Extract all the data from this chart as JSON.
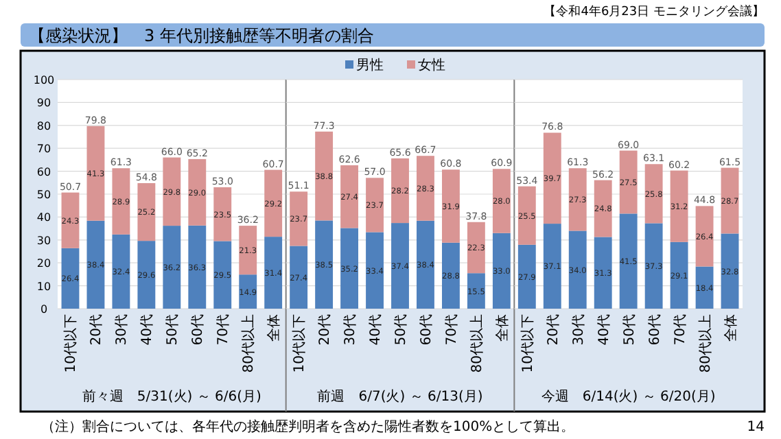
{
  "chart_data": [
    {
      "type": "bar",
      "title": "【感染状況】　3 年代別接触歴等不明者の割合",
      "annotations": [
        "【令和4年6月23日 モニタリング会議】",
        "（注）割合については、各年代の接触歴判明者を含めた陽性者数を100%として算出。",
        "14"
      ],
      "xlabel": "前々週　5/31(火) ～ 6/6(月)",
      "categories": [
        "10代以下",
        "20代",
        "30代",
        "40代",
        "50代",
        "60代",
        "70代",
        "80代以上",
        "全体"
      ],
      "series": [
        {
          "color": "#4f81bd",
          "values": [
            26.4,
            38.4,
            32.4,
            29.6,
            36.2,
            36.3,
            29.5,
            14.9,
            31.4
          ],
          "value_labels": [
            "26.4",
            "38.4",
            "32.4",
            "29.6",
            "36.2",
            "36.3",
            "29.5",
            "14.9",
            "31.4"
          ]
        },
        {
          "color": "#d99594",
          "values": [
            24.3,
            41.3,
            28.9,
            25.2,
            29.8,
            29.0,
            23.5,
            21.3,
            29.2
          ],
          "value_labels": [
            "24.3",
            "41.3",
            "28.9",
            "25.2",
            "29.8",
            "29.0",
            "23.5",
            "21.3",
            "29.2"
          ]
        }
      ],
      "totals": [
        "50.7",
        "79.8",
        "61.3",
        "54.8",
        "66.0",
        "65.2",
        "53.0",
        "36.2",
        "60.7"
      ],
      "stacked": true,
      "grid": "y",
      "ylim": [
        0,
        100
      ],
      "yticks": [
        0,
        10,
        20,
        30,
        40,
        50,
        60,
        70,
        80,
        90,
        100
      ]
    },
    {
      "type": "bar",
      "xlabel": "前週　6/7(火) ～ 6/13(月)",
      "categories": [
        "10代以下",
        "20代",
        "30代",
        "40代",
        "50代",
        "60代",
        "70代",
        "80代以上",
        "全体"
      ],
      "series": [
        {
          "name": "男性",
          "color": "#4f81bd",
          "values": [
            27.4,
            38.5,
            35.2,
            33.4,
            37.4,
            38.4,
            28.8,
            15.5,
            33.0
          ],
          "value_labels": [
            "27.4",
            "38.5",
            "35.2",
            "33.4",
            "37.4",
            "38.4",
            "28.8",
            "15.5",
            "33.0"
          ]
        },
        {
          "name": "女性",
          "color": "#d99594",
          "values": [
            23.7,
            38.8,
            27.4,
            23.7,
            28.2,
            28.3,
            31.9,
            22.3,
            28.0
          ],
          "value_labels": [
            "23.7",
            "38.8",
            "27.4",
            "23.7",
            "28.2",
            "28.3",
            "31.9",
            "22.3",
            "28.0"
          ]
        }
      ],
      "totals": [
        "51.1",
        "77.3",
        "62.6",
        "57.0",
        "65.6",
        "66.7",
        "60.8",
        "37.8",
        "60.9"
      ],
      "stacked": true,
      "grid": "y",
      "legend": "top",
      "tick_labels": "x",
      "ylim": [
        0,
        100
      ],
      "yticks": [
        0,
        10,
        20,
        30,
        40,
        50,
        60,
        70,
        80,
        90,
        100
      ]
    },
    {
      "type": "bar",
      "xlabel": "今週　6/14(火) ～ 6/20(月)",
      "categories": [
        "10代以下",
        "20代",
        "30代",
        "40代",
        "50代",
        "60代",
        "70代",
        "80代以上",
        "全体"
      ],
      "series": [
        {
          "color": "#4f81bd",
          "values": [
            27.9,
            37.1,
            34.0,
            31.3,
            41.5,
            37.3,
            29.1,
            18.4,
            32.8
          ],
          "value_labels": [
            "27.9",
            "37.1",
            "34.0",
            "31.3",
            "41.5",
            "37.3",
            "29.1",
            "18.4",
            "32.8"
          ]
        },
        {
          "color": "#d99594",
          "values": [
            25.5,
            39.7,
            27.3,
            24.8,
            27.5,
            25.8,
            31.2,
            26.4,
            28.7
          ],
          "value_labels": [
            "25.5",
            "39.7",
            "27.3",
            "24.8",
            "27.5",
            "25.8",
            "31.2",
            "26.4",
            "28.7"
          ]
        }
      ],
      "totals": [
        "53.4",
        "76.8",
        "61.3",
        "56.2",
        "69.0",
        "63.1",
        "60.2",
        "44.8",
        "61.5"
      ],
      "stacked": true,
      "grid": "y",
      "tick_labels": "x",
      "ylim": [
        0,
        100
      ],
      "yticks": [
        0,
        10,
        20,
        30,
        40,
        50,
        60,
        70,
        80,
        90,
        100
      ]
    }
  ]
}
